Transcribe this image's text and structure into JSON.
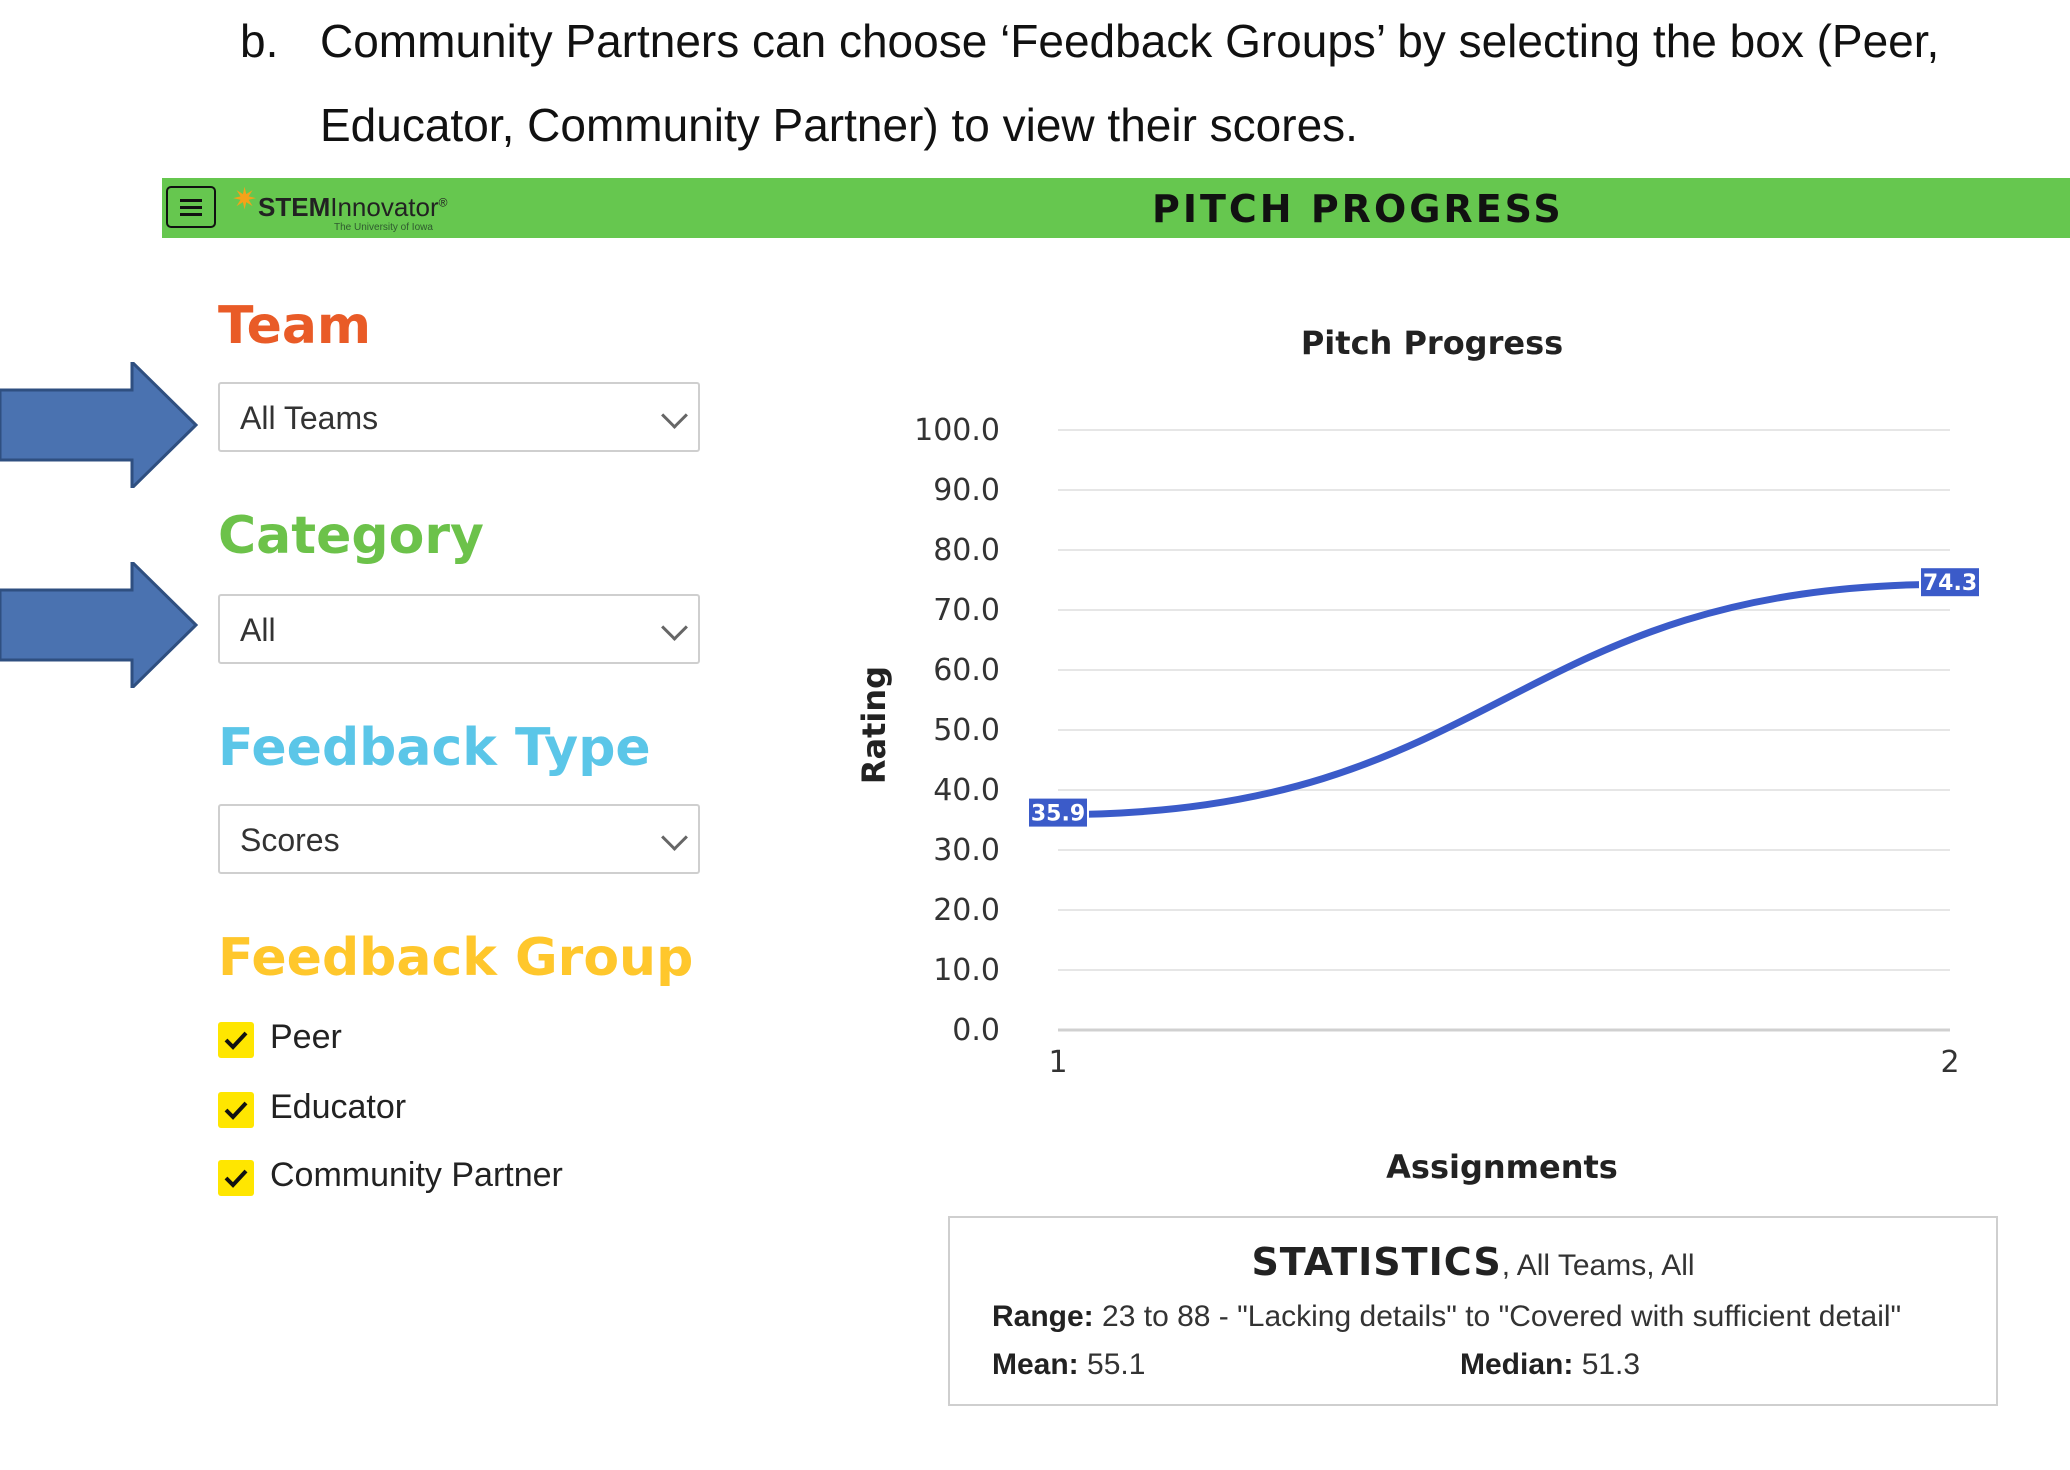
{
  "document": {
    "marker": "b.",
    "line1": "Community Partners can choose ‘Feedback Groups’ by selecting the box (Peer,",
    "line2": "Educator, Community Partner) to view their scores."
  },
  "header": {
    "logo_bold": "STEM",
    "logo_rest": "Innovator",
    "logo_reg": "®",
    "logo_sub": "The University of Iowa",
    "title": "PITCH PROGRESS"
  },
  "filters": {
    "team_title": "Team",
    "team_value": "All Teams",
    "category_title": "Category",
    "category_value": "All",
    "feedback_type_title": "Feedback Type",
    "feedback_type_value": "Scores",
    "feedback_group_title": "Feedback Group",
    "groups": [
      {
        "label": "Peer",
        "checked": true
      },
      {
        "label": "Educator",
        "checked": true
      },
      {
        "label": "Community Partner",
        "checked": true
      }
    ]
  },
  "colors": {
    "header_green": "#66c74f",
    "team_orange": "#e95b27",
    "category_green": "#6cc24a",
    "feedback_type_blue": "#5bc6e8",
    "feedback_group_yellow": "#ffc72c",
    "checkbox_yellow": "#ffe600",
    "arrow_blue": "#4a72b0",
    "line_blue": "#3b5bc9"
  },
  "chart_data": {
    "type": "line",
    "title": "Pitch Progress",
    "xlabel": "Assignments",
    "ylabel": "Rating",
    "x": [
      1,
      2
    ],
    "x_tick_labels": [
      "1",
      "2"
    ],
    "series": [
      {
        "values": [
          35.9,
          74.3
        ],
        "data_labels": [
          "35.9",
          "74.3"
        ]
      }
    ],
    "ylim": [
      0,
      100
    ],
    "y_tick_labels": [
      "100.0",
      "90.0",
      "80.0",
      "70.0",
      "60.0",
      "50.0",
      "40.0",
      "30.0",
      "20.0",
      "10.0",
      "0.0"
    ],
    "grid": true,
    "smooth": true
  },
  "statistics": {
    "heading": "STATISTICS",
    "heading_suffix": ", All Teams, All",
    "range_label": "Range:",
    "range_value": "23 to 88 - \"Lacking details\" to \"Covered with sufficient detail\"",
    "mean_label": "Mean:",
    "mean_value": "55.1",
    "median_label": "Median:",
    "median_value": "51.3"
  }
}
